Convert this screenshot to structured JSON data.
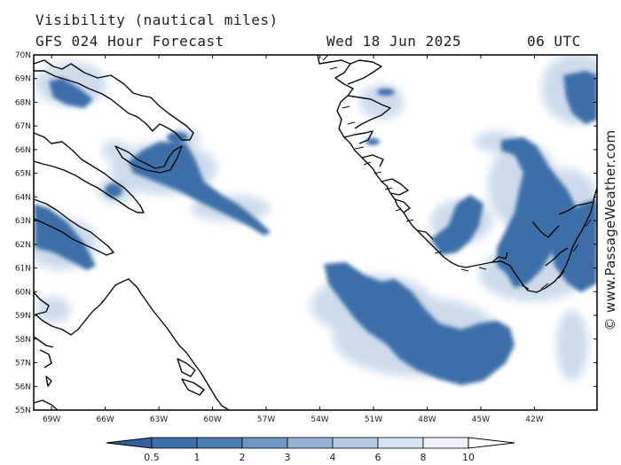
{
  "header": {
    "title": "Visibility (nautical miles)",
    "subtitle": "GFS 024 Hour Forecast",
    "date": "Wed 18 Jun 2025",
    "time": "06 UTC"
  },
  "map": {
    "lat_labels": [
      "70N",
      "69N",
      "68N",
      "67N",
      "66N",
      "65N",
      "64N",
      "63N",
      "62N",
      "61N",
      "60N",
      "59N",
      "58N",
      "57N",
      "56N",
      "55N"
    ],
    "lon_labels": [
      "69W",
      "66W",
      "63W",
      "60W",
      "57W",
      "54W",
      "51W",
      "48W",
      "45W",
      "42W"
    ],
    "lat_range": [
      55,
      70
    ],
    "lon_range": [
      -70,
      -38.5
    ],
    "regions": [
      "Greenland (south & west coast)",
      "Baffin Island",
      "Labrador"
    ]
  },
  "colorbar": {
    "labels": [
      "0.5",
      "1",
      "2",
      "3",
      "4",
      "6",
      "8",
      "10"
    ],
    "colors": [
      "#3d6ea8",
      "#4c7db5",
      "#6f97c6",
      "#94b3d6",
      "#b6cce4",
      "#d6e3f0",
      "#eef3f9"
    ],
    "below_color": "#3560a0",
    "above_color": "#ffffff"
  },
  "copyright": "© www.PassageWeather.com"
}
